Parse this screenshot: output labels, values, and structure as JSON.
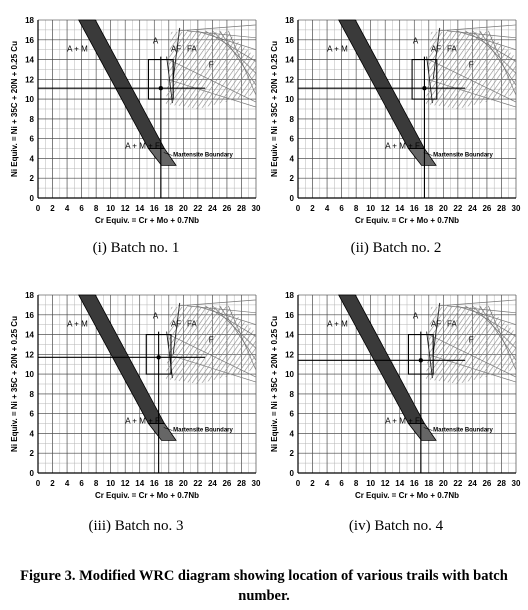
{
  "diagram": {
    "y_label": "Ni Equiv. = Ni + 35C + 20N + 0.25 Cu",
    "x_label": "Cr Equiv. = Cr + Mo + 0.7Nb",
    "x_ticks": [
      "0",
      "2",
      "4",
      "6",
      "8",
      "10",
      "12",
      "14",
      "16",
      "18",
      "20",
      "22",
      "24",
      "26",
      "28",
      "30"
    ],
    "y_ticks": [
      "0",
      "2",
      "4",
      "6",
      "8",
      "10",
      "12",
      "14",
      "16",
      "18"
    ],
    "x_range": [
      0,
      30
    ],
    "y_range": [
      0,
      18
    ],
    "region_labels": {
      "am": "A + M",
      "a": "A",
      "af": "AF",
      "fa": "FA",
      "f": "F",
      "amf": "A + M + F"
    },
    "boundary_label": "Martensite Boundary"
  },
  "panels": [
    {
      "caption": "(i) Batch no. 1",
      "cr_equiv": 16.9,
      "ni_equiv": 11.1
    },
    {
      "caption": "(ii) Batch no. 2",
      "cr_equiv": 17.4,
      "ni_equiv": 11.1
    },
    {
      "caption": "(iii) Batch no. 3",
      "cr_equiv": 16.6,
      "ni_equiv": 11.7
    },
    {
      "caption": "(iv) Batch no. 4",
      "cr_equiv": 16.9,
      "ni_equiv": 11.4
    }
  ],
  "figure_caption": "Figure 3.  Modified WRC diagram showing location of various trails with batch number."
}
